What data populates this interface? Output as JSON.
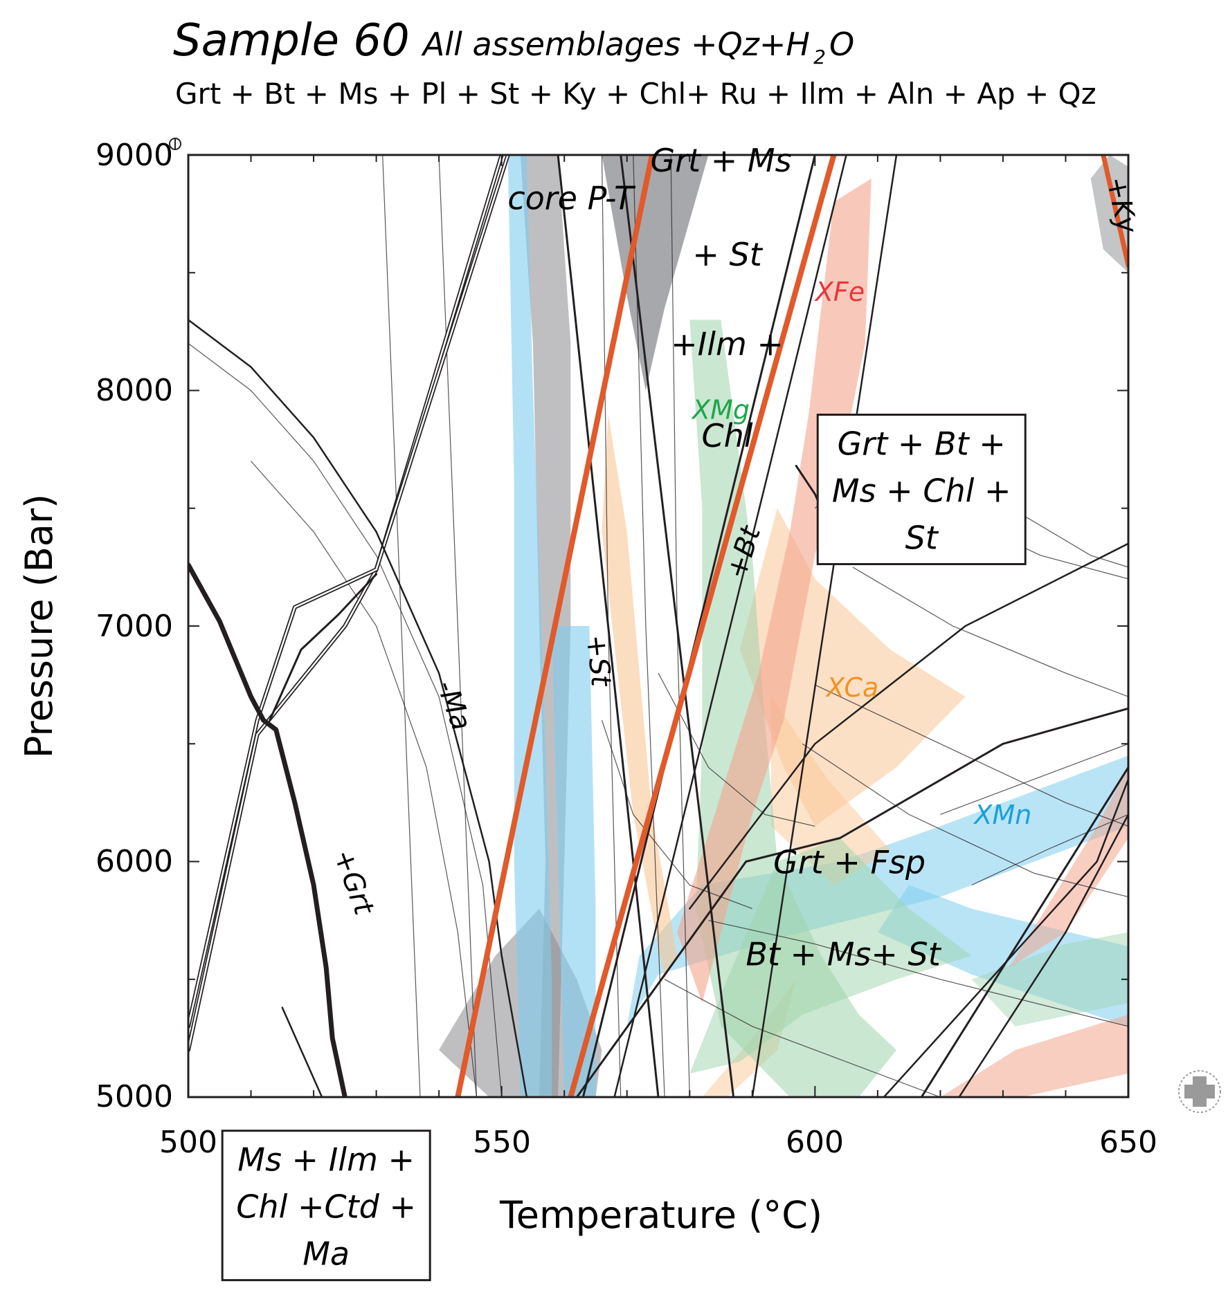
{
  "title": {
    "sample": "Sample 60",
    "subtitle_a": "All assemblages +Qz+H",
    "subtitle_sub": "2",
    "subtitle_b": "O",
    "assemblage": "Grt + Bt + Ms + Pl + St + Ky + Chl+ Ru + Ilm + Aln + Ap + Qz"
  },
  "chart_data": {
    "type": "phase-diagram",
    "title": "Sample 60 All assemblages +Qz+H2O",
    "xlabel": "Temperature (°C)",
    "ylabel": "Pressure (Bar)",
    "xlim": [
      500,
      650
    ],
    "ylim": [
      5000,
      9000
    ],
    "x_ticks": [
      500,
      550,
      600,
      650
    ],
    "y_ticks": [
      5000,
      6000,
      7000,
      8000,
      9000
    ],
    "x_tick_labels": [
      "500",
      "550",
      "600",
      "650"
    ],
    "y_tick_labels": [
      "5000",
      "6000",
      "7000",
      "8000",
      "9000"
    ],
    "field_labels": [
      {
        "text": "core P-T",
        "t": 561,
        "p": 8770
      },
      {
        "text": "Grt + Ms",
        "t": 585,
        "p": 8930
      },
      {
        "text": "+ St",
        "t": 586,
        "p": 8530
      },
      {
        "text": "+Ilm +",
        "t": 586,
        "p": 8150
      },
      {
        "text": "Chl",
        "t": 586,
        "p": 7760
      },
      {
        "text": "Grt + Fsp",
        "t": 605.5,
        "p": 5950
      },
      {
        "text": "Bt + Ms+ St",
        "t": 604.5,
        "p": 5560
      }
    ],
    "boxed_labels": [
      {
        "lines": [
          "Grt + Bt +",
          "Ms + Chl +",
          "St"
        ],
        "t": 617,
        "p": 7580
      },
      {
        "lines": [
          "Ms + Ilm +",
          "Chl +Ctd +",
          "Ma"
        ],
        "t": 522,
        "p": 4540
      }
    ],
    "reaction_labels": [
      {
        "text": "-Ma",
        "t": 541,
        "p": 6650
      },
      {
        "text": "+St",
        "t": 564,
        "p": 6850
      },
      {
        "text": "+Bt",
        "t": 590,
        "p": 7300
      },
      {
        "text": "+Grt",
        "t": 525,
        "p": 5900
      },
      {
        "text": "+Ky",
        "t": 647.5,
        "p": 8780
      }
    ],
    "isopleth_labels": [
      {
        "text": "XFe",
        "t": 604,
        "p": 8380,
        "color": "#e8363a"
      },
      {
        "text": "XMg",
        "t": 585,
        "p": 7880,
        "color": "#1fa54b"
      },
      {
        "text": "XCa",
        "t": 606,
        "p": 6700,
        "color": "#f29223"
      },
      {
        "text": "XMn",
        "t": 630,
        "p": 6160,
        "color": "#1ba0d8"
      }
    ],
    "bands": [
      {
        "name": "core P-T",
        "color": "#8a8b8f"
      },
      {
        "name": "XMn",
        "color": "#7fcdef"
      },
      {
        "name": "XCa",
        "color": "#f9c796"
      },
      {
        "name": "XMg",
        "color": "#9ed3ac"
      },
      {
        "name": "XFe",
        "color": "#f3a58e"
      },
      {
        "name": "XFe (high-T)",
        "color": "#f3a58e"
      }
    ],
    "reaction_lines": [
      {
        "name": "Grt-in",
        "points": [
          [
            500,
            7260
          ],
          [
            505,
            7020
          ],
          [
            510,
            6700
          ],
          [
            512,
            6600
          ],
          [
            514,
            6560
          ],
          [
            517,
            6250
          ],
          [
            520,
            5900
          ],
          [
            522,
            5550
          ],
          [
            523,
            5250
          ],
          [
            525,
            5000
          ]
        ]
      },
      {
        "name": "-Ma",
        "points": [
          [
            500,
            8300
          ],
          [
            510,
            8100
          ],
          [
            520,
            7800
          ],
          [
            530,
            7400
          ],
          [
            540,
            6800
          ],
          [
            548,
            6000
          ],
          [
            550,
            5600
          ],
          [
            552,
            5300
          ],
          [
            554,
            5000
          ]
        ]
      },
      {
        "name": "+St",
        "points": [
          [
            543,
            5000
          ],
          [
            574,
            9000
          ]
        ]
      },
      {
        "name": "+Bt",
        "points": [
          [
            561,
            5000
          ],
          [
            603,
            9000
          ]
        ]
      },
      {
        "name": "+Ky",
        "points": [
          [
            646,
            9000
          ],
          [
            650,
            8530
          ]
        ]
      }
    ],
    "colors": {
      "reaction": "#e05a2b",
      "line": "#231f20",
      "gray_band": "#8a8b8f",
      "blue_band": "#7fcdef",
      "orange_band": "#f9c796",
      "green_band": "#9ed3ac",
      "red_band": "#f3a58e"
    }
  }
}
